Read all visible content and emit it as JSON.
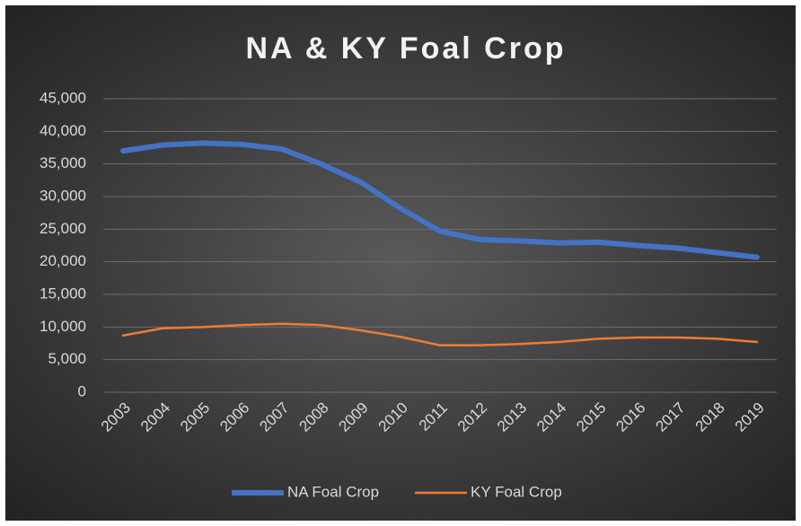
{
  "chart_data": {
    "type": "line",
    "title": "NA & KY Foal Crop",
    "categories": [
      "2003",
      "2004",
      "2005",
      "2006",
      "2007",
      "2008",
      "2009",
      "2010",
      "2011",
      "2012",
      "2013",
      "2014",
      "2015",
      "2016",
      "2017",
      "2018",
      "2019"
    ],
    "series": [
      {
        "name": "NA Foal Crop",
        "color": "#4472c4",
        "values": [
          37000,
          37900,
          38200,
          38000,
          37300,
          35000,
          32200,
          28200,
          24700,
          23400,
          23200,
          22900,
          23000,
          22500,
          22100,
          21400,
          20700
        ]
      },
      {
        "name": "KY Foal Crop",
        "color": "#ed7d31",
        "values": [
          8700,
          9800,
          10000,
          10300,
          10500,
          10300,
          9500,
          8500,
          7200,
          7200,
          7400,
          7700,
          8200,
          8400,
          8400,
          8200,
          7700
        ]
      }
    ],
    "ylim": [
      0,
      45000
    ],
    "yticks": [
      0,
      {
        "value": 5000,
        "label": "5,000"
      },
      {
        "value": 10000,
        "label": "10,000"
      },
      {
        "value": 15000,
        "label": "15,000"
      },
      {
        "value": 20000,
        "label": "20,000"
      },
      {
        "value": 25000,
        "label": "25,000"
      },
      {
        "value": 30000,
        "label": "30,000"
      },
      {
        "value": 35000,
        "label": "35,000"
      },
      {
        "value": 40000,
        "label": "40,000"
      },
      {
        "value": 45000,
        "label": "45,000"
      }
    ],
    "grid": true,
    "legend": "bottom"
  }
}
